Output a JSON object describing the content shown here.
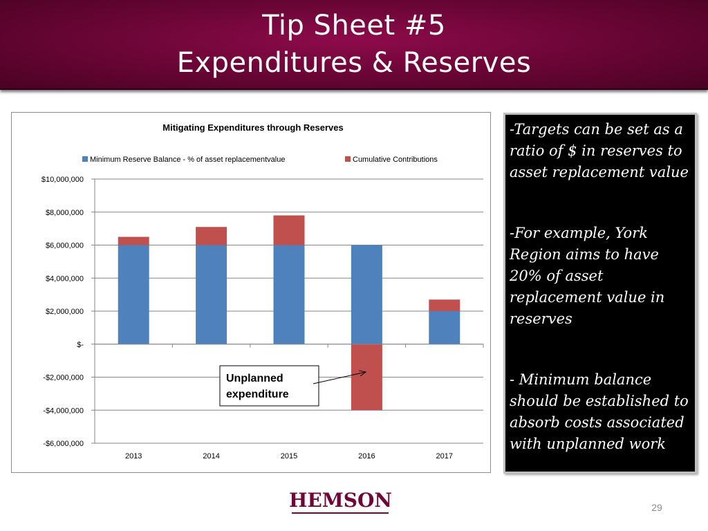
{
  "header": {
    "title_line1": "Tip Sheet #5",
    "title_line2": "Expenditures & Reserves"
  },
  "chart_data": {
    "type": "bar",
    "stacked": true,
    "title": "Mitigating Expenditures through Reserves",
    "categories": [
      "2013",
      "2014",
      "2015",
      "2016",
      "2017"
    ],
    "series": [
      {
        "name": "Minimum Reserve Balance - % of asset replacementvalue",
        "color": "#4f81bd",
        "values": [
          6000000,
          6000000,
          6000000,
          6000000,
          2000000
        ]
      },
      {
        "name": "Cumulative Contributions",
        "color": "#c0504d",
        "values": [
          500000,
          1100000,
          1800000,
          -4000000,
          700000
        ]
      }
    ],
    "ylim": [
      -6000000,
      10000000
    ],
    "yticks": [
      10000000,
      8000000,
      6000000,
      4000000,
      2000000,
      0,
      -2000000,
      -4000000,
      -6000000
    ],
    "ytick_labels": [
      "$10,000,000",
      "$8,000,000",
      "$6,000,000",
      "$4,000,000",
      "$2,000,000",
      "$-",
      "-$2,000,000",
      "-$4,000,000",
      "-$6,000,000"
    ],
    "grid": true,
    "legend_position": "top",
    "annotation": {
      "text_line1": "Unplanned",
      "text_line2": "expenditure",
      "arrow_target_category": "2016"
    }
  },
  "notes": {
    "note1": "-Targets can be set as a ratio of $ in reserves to asset replacement value",
    "note2": "-For example, York Region aims to have 20% of asset replacement value in reserves",
    "note3": "- Minimum balance should be established to absorb costs associated with unplanned work"
  },
  "footer": {
    "logo_text": "HEMSON",
    "page_number": "29"
  },
  "colors": {
    "header_bg": "#6e0638",
    "note_panel_bg": "#000000",
    "logo": "#6e0638"
  }
}
